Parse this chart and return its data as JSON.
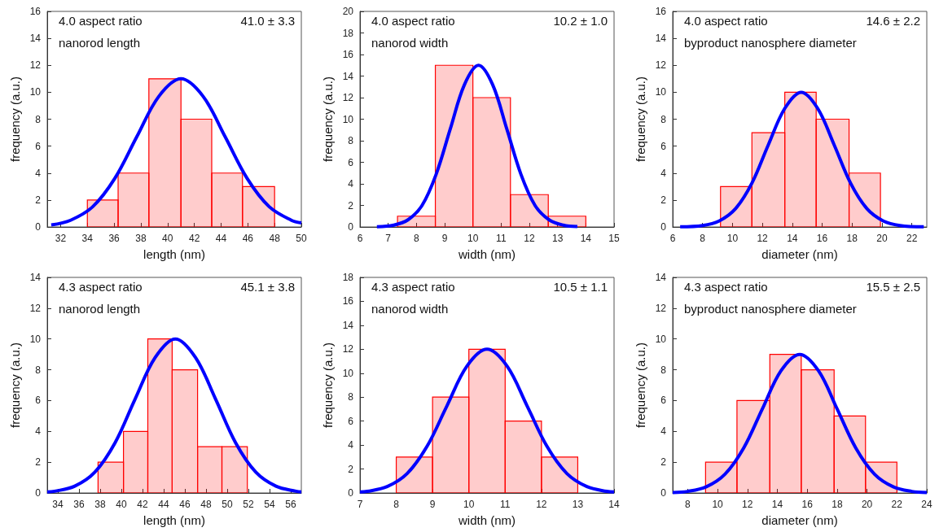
{
  "chart_data": [
    {
      "type": "histogram",
      "xlabel": "length (nm)",
      "ylabel": "frequency (a.u.)",
      "annotations": [
        "4.0 aspect ratio",
        "nanorod length",
        "41.0 ± 3.3"
      ],
      "xlim": [
        31,
        50
      ],
      "xticks": [
        32,
        34,
        36,
        38,
        40,
        42,
        44,
        46,
        48,
        50
      ],
      "ylim": [
        0,
        16
      ],
      "yticks": [
        0,
        2,
        4,
        6,
        8,
        10,
        12,
        14,
        16
      ],
      "series": [
        {
          "color": "#ff0000",
          "bins": [
            34,
            36.3,
            38.6,
            41,
            43.3,
            45.6,
            48
          ],
          "values": [
            2,
            4,
            11,
            8,
            4,
            3
          ]
        },
        {
          "type": "line",
          "color": "#0000ff",
          "marker": "none",
          "x": [
            31.3,
            32.75,
            34.4,
            36.05,
            37.7,
            39.35,
            41,
            42.65,
            44.3,
            45.95,
            47.6,
            49.25,
            50
          ],
          "values": [
            0.15,
            0.5,
            1.5,
            3.6,
            6.7,
            9.7,
            11,
            9.7,
            6.7,
            3.6,
            1.5,
            0.5,
            0.3
          ]
        }
      ]
    },
    {
      "type": "histogram",
      "xlabel": "width (nm)",
      "ylabel": "frequency (a.u.)",
      "annotations": [
        "4.0 aspect ratio",
        "nanorod width",
        "10.2 ± 1.0"
      ],
      "xlim": [
        6,
        15
      ],
      "xticks": [
        6,
        7,
        8,
        9,
        10,
        11,
        12,
        13,
        14,
        15
      ],
      "ylim": [
        0,
        20
      ],
      "yticks": [
        0,
        2,
        4,
        6,
        8,
        10,
        12,
        14,
        16,
        18,
        20
      ],
      "series": [
        {
          "color": "#ff0000",
          "bins": [
            7.33,
            8.67,
            10,
            11.33,
            12.67,
            14
          ],
          "values": [
            1,
            15,
            12,
            3,
            1
          ]
        },
        {
          "type": "line",
          "color": "#0000ff",
          "marker": "none",
          "x": [
            6.6,
            7.2,
            7.7,
            8.2,
            8.7,
            9.2,
            9.7,
            10.2,
            10.7,
            11.2,
            11.7,
            12.2,
            12.7,
            13.2,
            13.7
          ],
          "values": [
            0.02,
            0.17,
            0.66,
            2,
            4.9,
            9.1,
            13.2,
            15,
            13.2,
            9.1,
            4.9,
            2,
            0.66,
            0.17,
            0.03
          ]
        }
      ]
    },
    {
      "type": "histogram",
      "xlabel": "diameter (nm)",
      "ylabel": "frequency (a.u.)",
      "annotations": [
        "4.0 aspect ratio",
        "byproduct nanosphere diameter",
        "14.6 ± 2.2"
      ],
      "xlim": [
        6,
        23
      ],
      "xticks": [
        6,
        8,
        10,
        12,
        14,
        16,
        18,
        20,
        22
      ],
      "ylim": [
        0,
        16
      ],
      "yticks": [
        0,
        2,
        4,
        6,
        8,
        10,
        12,
        14,
        16
      ],
      "series": [
        {
          "color": "#ff0000",
          "bins": [
            9.2,
            11.3,
            13.5,
            15.6,
            17.8,
            19.9
          ],
          "values": [
            3,
            7,
            10,
            8,
            4
          ]
        },
        {
          "type": "line",
          "color": "#0000ff",
          "marker": "none",
          "x": [
            6.5,
            8,
            9.1,
            10.2,
            11.3,
            12.4,
            13.5,
            14.6,
            15.7,
            16.8,
            17.9,
            19,
            20.1,
            21.2,
            22.8
          ],
          "values": [
            0.01,
            0.11,
            0.44,
            1.35,
            3.25,
            6.1,
            8.8,
            10,
            8.8,
            6.1,
            3.25,
            1.35,
            0.44,
            0.11,
            0.01
          ]
        }
      ]
    },
    {
      "type": "histogram",
      "xlabel": "length (nm)",
      "ylabel": "frequency (a.u.)",
      "annotations": [
        "4.3 aspect ratio",
        "nanorod length",
        "45.1 ± 3.8"
      ],
      "xlim": [
        33,
        57
      ],
      "xticks": [
        34,
        36,
        38,
        40,
        42,
        44,
        46,
        48,
        50,
        52,
        54,
        56
      ],
      "ylim": [
        0,
        14
      ],
      "yticks": [
        0,
        2,
        4,
        6,
        8,
        10,
        12,
        14
      ],
      "series": [
        {
          "color": "#ff0000",
          "bins": [
            37.8,
            40.2,
            42.5,
            44.8,
            47.2,
            49.5,
            51.9
          ],
          "values": [
            2,
            4,
            10,
            8,
            3,
            3
          ]
        },
        {
          "type": "line",
          "color": "#0000ff",
          "marker": "none",
          "x": [
            33,
            33.7,
            35.6,
            37.5,
            39.4,
            41.3,
            43.2,
            45.1,
            47,
            48.9,
            50.8,
            52.7,
            54.6,
            56.5,
            57
          ],
          "values": [
            0.06,
            0.11,
            0.44,
            1.35,
            3.25,
            6.1,
            8.8,
            10,
            8.8,
            6.1,
            3.25,
            1.35,
            0.44,
            0.11,
            0.07
          ]
        }
      ]
    },
    {
      "type": "histogram",
      "xlabel": "width (nm)",
      "ylabel": "frequency (a.u.)",
      "annotations": [
        "4.3 aspect ratio",
        "nanorod width",
        "10.5 ± 1.1"
      ],
      "xlim": [
        7,
        14
      ],
      "xticks": [
        7,
        8,
        9,
        10,
        11,
        12,
        13,
        14
      ],
      "ylim": [
        0,
        18
      ],
      "yticks": [
        0,
        2,
        4,
        6,
        8,
        10,
        12,
        14,
        16,
        18
      ],
      "series": [
        {
          "color": "#ff0000",
          "bins": [
            8,
            9,
            10,
            11,
            12,
            13
          ],
          "values": [
            3,
            8,
            12,
            6,
            3
          ]
        },
        {
          "type": "line",
          "color": "#0000ff",
          "marker": "none",
          "x": [
            7,
            7.2,
            7.75,
            8.3,
            8.85,
            9.4,
            9.95,
            10.5,
            11.05,
            11.6,
            12.15,
            12.7,
            13.25,
            13.8,
            14
          ],
          "values": [
            0.08,
            0.13,
            0.53,
            1.62,
            3.9,
            7.3,
            10.6,
            12,
            10.6,
            7.3,
            3.9,
            1.62,
            0.53,
            0.13,
            0.08
          ]
        }
      ]
    },
    {
      "type": "histogram",
      "xlabel": "diameter (nm)",
      "ylabel": "frequency (a.u.)",
      "annotations": [
        "4.3 aspect ratio",
        "byproduct nanosphere diameter",
        "15.5 ± 2.5"
      ],
      "xlim": [
        7,
        24
      ],
      "xticks": [
        8,
        10,
        12,
        14,
        16,
        18,
        20,
        22,
        24
      ],
      "ylim": [
        0,
        14
      ],
      "yticks": [
        0,
        2,
        4,
        6,
        8,
        10,
        12,
        14
      ],
      "series": [
        {
          "color": "#ff0000",
          "bins": [
            9.2,
            11.3,
            13.5,
            15.6,
            17.8,
            19.9,
            22
          ],
          "values": [
            2,
            6,
            9,
            8,
            5,
            2
          ]
        },
        {
          "type": "line",
          "color": "#0000ff",
          "marker": "none",
          "x": [
            7,
            8,
            9.25,
            10.5,
            11.75,
            13,
            14.25,
            15.5,
            16.75,
            18,
            19.25,
            20.5,
            21.75,
            23,
            24
          ],
          "values": [
            0.03,
            0.1,
            0.4,
            1.22,
            2.92,
            5.46,
            7.94,
            9,
            7.94,
            5.46,
            2.92,
            1.22,
            0.4,
            0.1,
            0.03
          ]
        }
      ]
    }
  ]
}
